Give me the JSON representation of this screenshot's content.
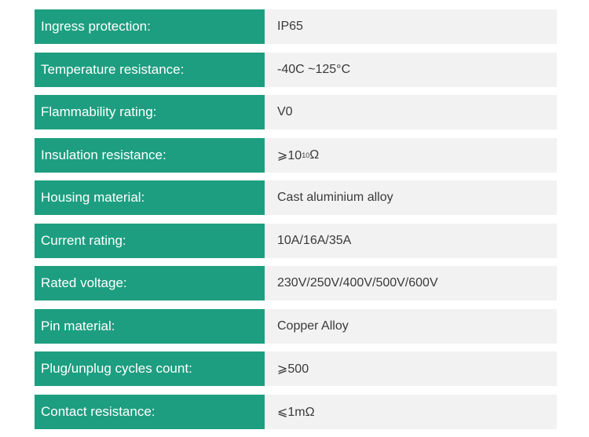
{
  "specs": [
    {
      "label": "Ingress protection:",
      "value": "IP65"
    },
    {
      "label": "Temperature resistance:",
      "value": "-40C ~125°C"
    },
    {
      "label": "Flammability rating:",
      "value": "V0"
    },
    {
      "label": "Insulation resistance:",
      "value_prefix": "⩾10",
      "value_sup": "10",
      "value_suffix": "Ω"
    },
    {
      "label": "Housing material:",
      "value": "Cast aluminium alloy"
    },
    {
      "label": "Current rating:",
      "value": "10A/16A/35A"
    },
    {
      "label": "Rated voltage:",
      "value": "230V/250V/400V/500V/600V"
    },
    {
      "label": "Pin material:",
      "value": "Copper Alloy"
    },
    {
      "label": "Plug/unplug cycles count:",
      "value": "⩾500"
    },
    {
      "label": "Contact resistance:",
      "value": "⩽1mΩ"
    }
  ],
  "colors": {
    "label_background": "#1e9e80",
    "label_text": "#ffffff",
    "value_background": "#f2f2f2",
    "value_text": "#3a3a3a"
  }
}
